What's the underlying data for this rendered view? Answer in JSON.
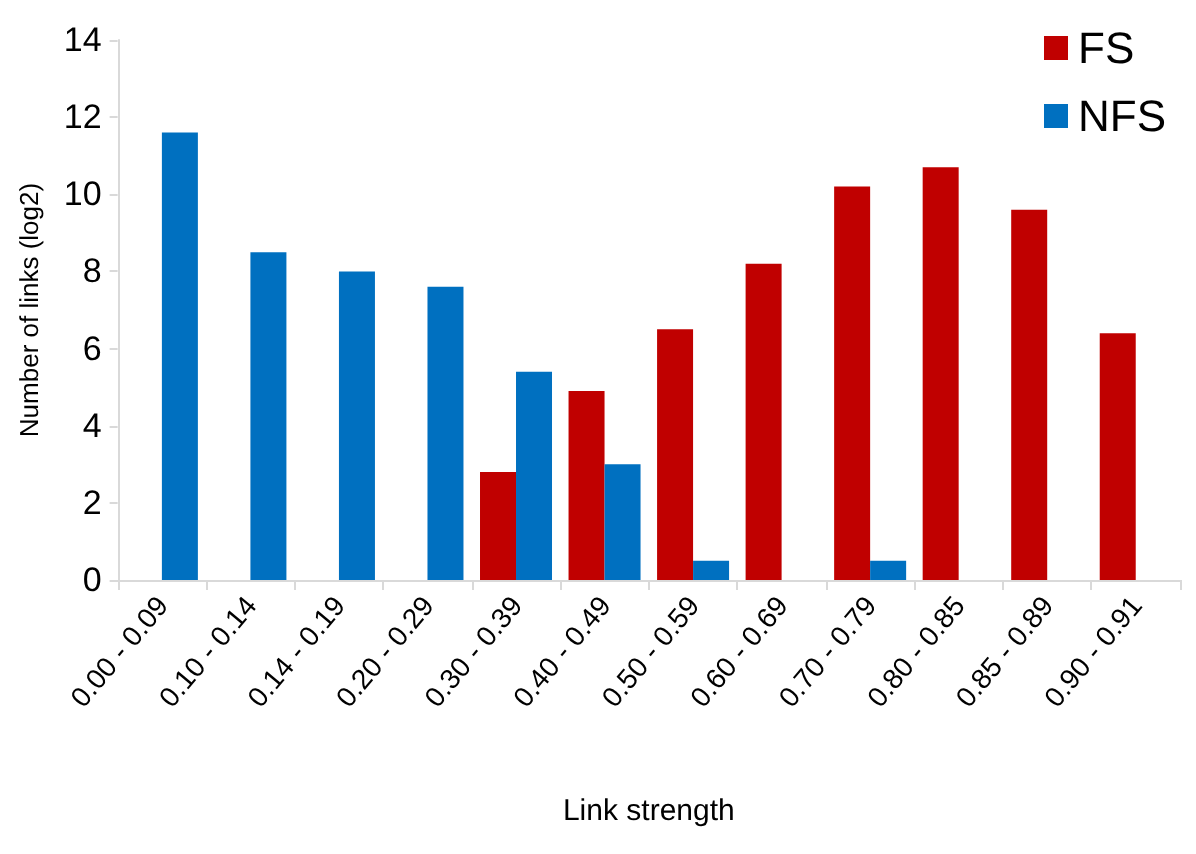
{
  "chart_data": {
    "type": "bar",
    "xlabel": "Link strength",
    "ylabel": "Number of links (log2)",
    "categories": [
      "0.00 - 0.09",
      "0.10 - 0.14",
      "0.14 - 0.19",
      "0.20 - 0.29",
      "0.30 - 0.39",
      "0.40 - 0.49",
      "0.50 - 0.59",
      "0.60 - 0.69",
      "0.70 - 0.79",
      "0.80 - 0.85",
      "0.85 - 0.89",
      "0.90 - 0.91"
    ],
    "series": [
      {
        "name": "FS",
        "color": "#c00000",
        "values": [
          null,
          null,
          null,
          null,
          2.8,
          4.9,
          6.5,
          8.2,
          10.2,
          10.7,
          9.6,
          6.4
        ]
      },
      {
        "name": "NFS",
        "color": "#0070c0",
        "values": [
          11.6,
          8.5,
          8.0,
          7.6,
          5.4,
          3.0,
          0.5,
          null,
          0.5,
          null,
          null,
          null
        ]
      }
    ],
    "ylim": [
      0,
      14
    ],
    "yticks": [
      0,
      2,
      4,
      6,
      8,
      10,
      12,
      14
    ],
    "grid": false,
    "legend": "top right"
  }
}
